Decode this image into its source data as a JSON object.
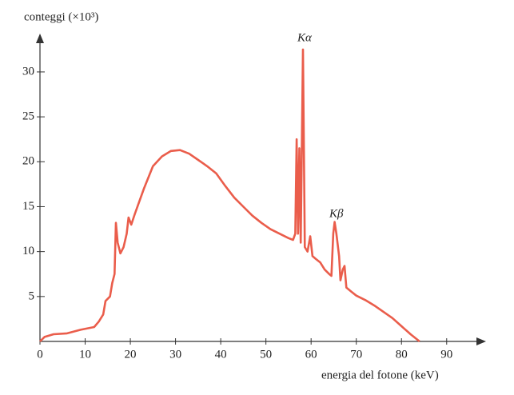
{
  "chart_data": {
    "type": "line",
    "y_label": "conteggi (×10³)",
    "x_label": "energia del fotone (keV)",
    "annotations": [
      "Kα",
      "Kβ"
    ],
    "xlim": [
      0,
      98
    ],
    "ylim": [
      0,
      34
    ],
    "xticks": [
      0,
      10,
      20,
      30,
      40,
      50,
      60,
      70,
      80,
      90
    ],
    "yticks": [
      5,
      10,
      15,
      20,
      25,
      30
    ],
    "grid": false,
    "series": [
      {
        "color": "#ea5d4b",
        "x": [
          0,
          1,
          3,
          6,
          9,
          12,
          13,
          14,
          14.5,
          15.5,
          16,
          16.5,
          16.8,
          17.2,
          17.8,
          18.5,
          19.2,
          19.6,
          20.2,
          21,
          23,
          25,
          27,
          29,
          31,
          33,
          35,
          37,
          39,
          41,
          43,
          45,
          47,
          49,
          51,
          53,
          55,
          56,
          56.5,
          56.8,
          57.1,
          57.4,
          57.7,
          58.2,
          58.6,
          59.2,
          59.8,
          60.3,
          61,
          62,
          63,
          64,
          64.5,
          64.9,
          65.2,
          65.6,
          66.2,
          66.5,
          67,
          67.4,
          67.8,
          69,
          70,
          72,
          74,
          76,
          78,
          80,
          82,
          84
        ],
        "values": [
          0,
          0.5,
          0.8,
          0.9,
          1.3,
          1.6,
          2.2,
          3.0,
          4.5,
          5,
          6.5,
          7.5,
          13.2,
          11,
          9.8,
          10.5,
          12,
          13.8,
          13,
          14.2,
          17,
          19.5,
          20.6,
          21.2,
          21.3,
          20.9,
          20.2,
          19.5,
          18.7,
          17.3,
          16,
          15,
          14,
          13.2,
          12.5,
          12,
          11.5,
          11.3,
          12,
          22.5,
          12,
          21.5,
          11,
          32.5,
          10.5,
          10,
          11.7,
          9.5,
          9.2,
          8.8,
          8,
          7.5,
          7.3,
          12,
          13.3,
          12,
          9.5,
          6.8,
          8,
          8.4,
          6,
          5.5,
          5.1,
          4.6,
          4,
          3.3,
          2.6,
          1.7,
          0.8,
          0
        ]
      }
    ]
  }
}
